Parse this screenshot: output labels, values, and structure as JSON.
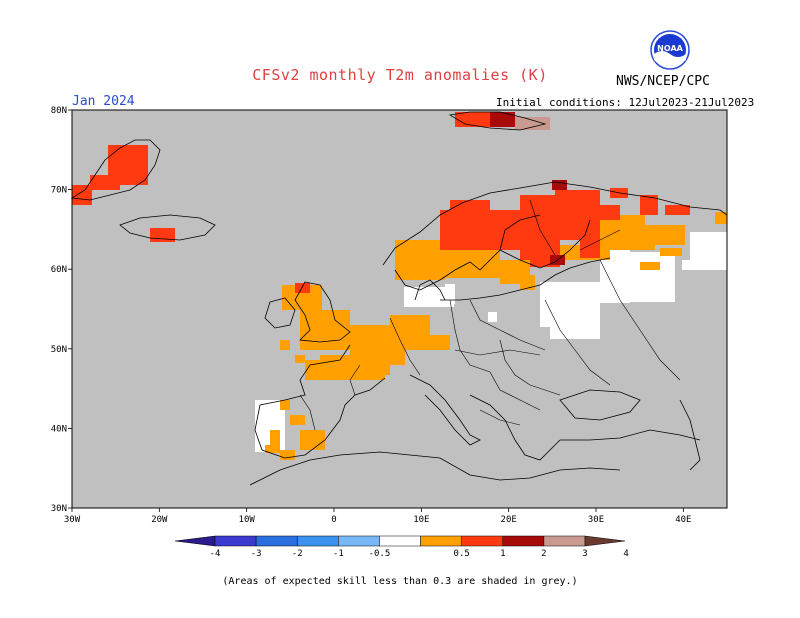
{
  "header": {
    "title": "CFSv2 monthly T2m anomalies (K)",
    "month": "Jan 2024",
    "agency": "NWS/NCEP/CPC",
    "initial_conditions": "Initial conditions: 12Jul2023-21Jul2023",
    "logo_text": "NOAA"
  },
  "axes": {
    "lat_ticks": [
      "80N",
      "70N",
      "60N",
      "50N",
      "40N",
      "30N"
    ],
    "lon_ticks": [
      "30W",
      "20W",
      "10W",
      "0",
      "10E",
      "20E",
      "30E",
      "40E"
    ]
  },
  "colorbar": {
    "labels": [
      "-4",
      "-3",
      "-2",
      "-1",
      "-0.5",
      "0.5",
      "1",
      "2",
      "3",
      "4"
    ],
    "colors": [
      "#2a1a8a",
      "#3a3ad0",
      "#2a6ee0",
      "#3a92ee",
      "#78b8f6",
      "#ffffff",
      "#ffa000",
      "#ff3a10",
      "#a80a0a",
      "#c89a90",
      "#6a3a30"
    ]
  },
  "footnote": "(Areas of expected skill less than 0.3 are shaded in grey.)",
  "colors": {
    "grey_low_skill": "#c0c0c0",
    "anomaly_0_5_1": "#ffa000",
    "anomaly_1_2": "#ff3a10",
    "anomaly_2_3": "#a80a0a",
    "anomaly_3_4": "#c89a90"
  }
}
